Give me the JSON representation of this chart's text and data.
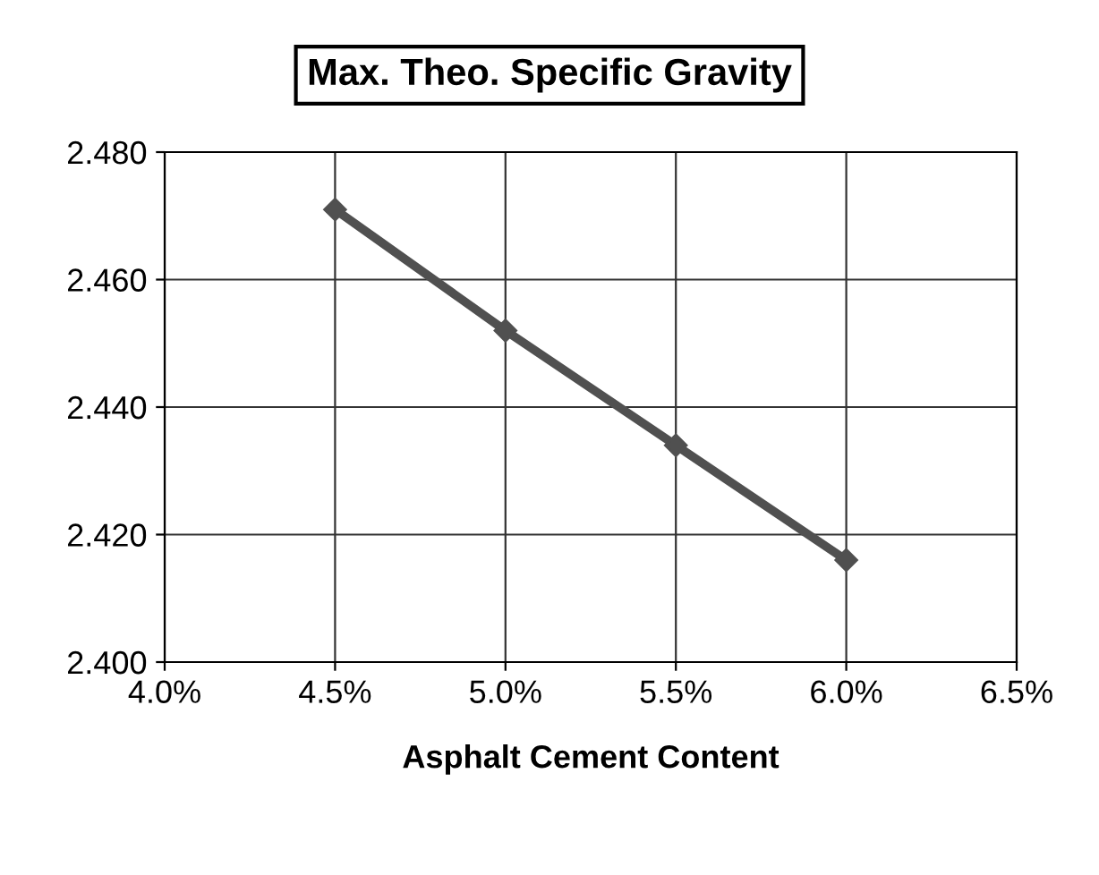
{
  "chart_data": {
    "type": "line",
    "title": "Max. Theo. Specific Gravity",
    "xlabel": "Asphalt Cement Content",
    "x": [
      4.5,
      5.0,
      5.5,
      6.0
    ],
    "series": [
      {
        "color": "#505050",
        "values": [
          2.471,
          2.452,
          2.434,
          2.416
        ]
      }
    ],
    "xlim": [
      4.0,
      6.5
    ],
    "xticks": [
      {
        "value": 4.0,
        "label": "4.0%"
      },
      {
        "value": 4.5,
        "label": "4.5%"
      },
      {
        "value": 5.0,
        "label": "5.0%"
      },
      {
        "value": 5.5,
        "label": "5.5%"
      },
      {
        "value": 6.0,
        "label": "6.0%"
      },
      {
        "value": 6.5,
        "label": "6.5%"
      }
    ],
    "ylim": [
      2.4,
      2.48
    ],
    "yticks": [
      {
        "value": 2.4,
        "label": "2.400"
      },
      {
        "value": 2.42,
        "label": "2.420"
      },
      {
        "value": 2.44,
        "label": "2.440"
      },
      {
        "value": 2.46,
        "label": "2.460"
      },
      {
        "value": 2.48,
        "label": "2.480"
      }
    ],
    "grid": true,
    "marker": "diamond",
    "line_style": "solid"
  }
}
